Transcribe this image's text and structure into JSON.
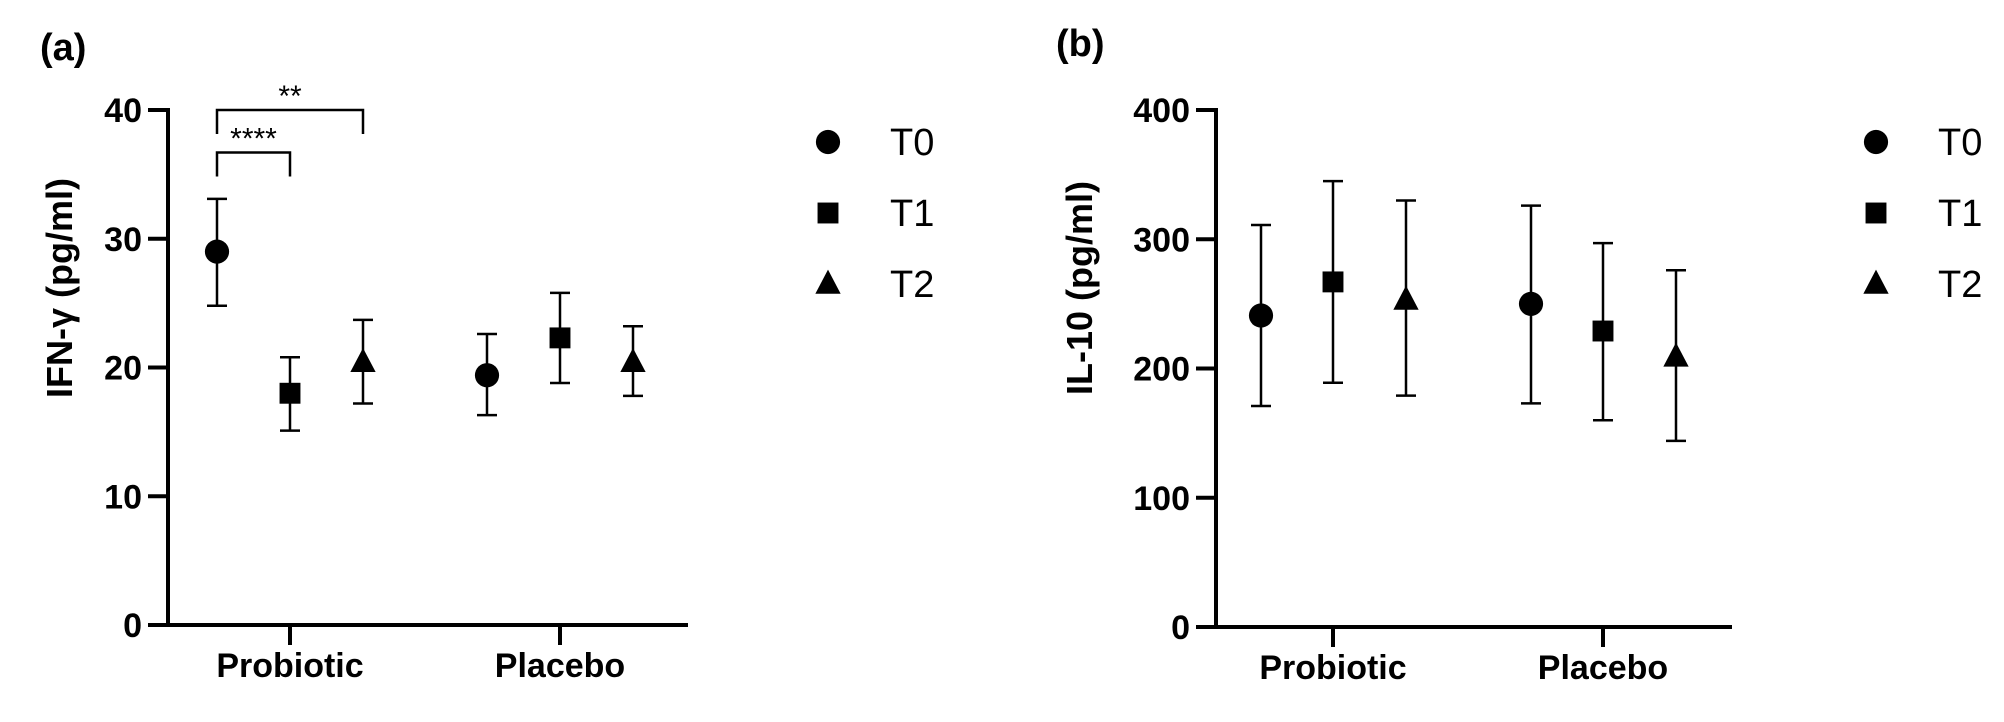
{
  "chart_data": [
    {
      "type": "scatter",
      "panel_label": "(a)",
      "title": "",
      "xlabel": "",
      "ylabel": "IFN-γ (pg/ml)",
      "ylim": [
        0,
        40
      ],
      "yticks": [
        "0",
        "10",
        "20",
        "30",
        "40"
      ],
      "categories": [
        "Probiotic",
        "Placebo"
      ],
      "grid": false,
      "legend_position": "right",
      "series": [
        {
          "name": "T0",
          "marker": "circle",
          "values": [
            29.0,
            19.4
          ],
          "error_low": [
            24.8,
            16.3
          ],
          "error_high": [
            33.1,
            22.6
          ]
        },
        {
          "name": "T1",
          "marker": "square",
          "values": [
            18.0,
            22.3
          ],
          "error_low": [
            15.1,
            18.8
          ],
          "error_high": [
            20.8,
            25.8
          ]
        },
        {
          "name": "T2",
          "marker": "triangle",
          "values": [
            20.4,
            20.4
          ],
          "error_low": [
            17.2,
            17.8
          ],
          "error_high": [
            23.7,
            23.2
          ]
        }
      ],
      "significance": [
        {
          "label": "****",
          "from": "T0",
          "to": "T1",
          "category": "Probiotic",
          "level": 36.7
        },
        {
          "label": "**",
          "from": "T0",
          "to": "T2",
          "category": "Probiotic",
          "level": 40.0
        }
      ]
    },
    {
      "type": "scatter",
      "panel_label": "(b)",
      "title": "",
      "xlabel": "",
      "ylabel": "IL-10 (pg/ml)",
      "ylim": [
        0,
        400
      ],
      "yticks": [
        "0",
        "100",
        "200",
        "300",
        "400"
      ],
      "categories": [
        "Probiotic",
        "Placebo"
      ],
      "grid": false,
      "legend_position": "right",
      "series": [
        {
          "name": "T0",
          "marker": "circle",
          "values": [
            241,
            250
          ],
          "error_low": [
            171,
            173
          ],
          "error_high": [
            311,
            326
          ]
        },
        {
          "name": "T1",
          "marker": "square",
          "values": [
            267,
            229
          ],
          "error_low": [
            189,
            160
          ],
          "error_high": [
            345,
            297
          ]
        },
        {
          "name": "T2",
          "marker": "triangle",
          "values": [
            253,
            209
          ],
          "error_low": [
            179,
            144
          ],
          "error_high": [
            330,
            276
          ]
        }
      ],
      "significance": []
    }
  ]
}
